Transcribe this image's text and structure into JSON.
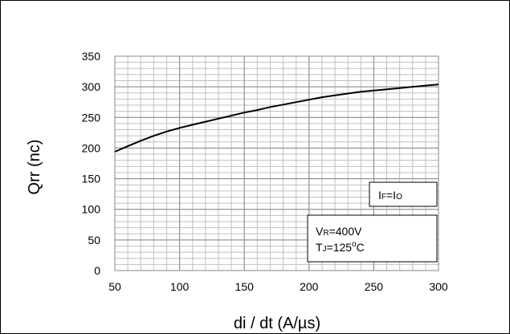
{
  "chart_data": {
    "type": "line",
    "title": "",
    "xlabel": "di / dt (A/µs)",
    "ylabel": "Qrr  (nc)",
    "xlim": [
      50,
      300
    ],
    "ylim": [
      0,
      350
    ],
    "x_ticks": [
      50,
      100,
      150,
      200,
      250,
      300
    ],
    "y_ticks": [
      0,
      50,
      100,
      150,
      200,
      250,
      300,
      350
    ],
    "x_tick_labels": [
      "50",
      "100",
      "150",
      "200",
      "250",
      "300"
    ],
    "y_tick_labels": [
      "0",
      "50",
      "100",
      "150",
      "200",
      "250",
      "300",
      "350"
    ],
    "grid": true,
    "series": [
      {
        "x": [
          50,
          60,
          70,
          80,
          90,
          100,
          110,
          120,
          130,
          140,
          150,
          160,
          170,
          180,
          190,
          200,
          210,
          220,
          230,
          240,
          250,
          260,
          270,
          280,
          290,
          300
        ],
        "y": [
          194,
          203,
          212,
          220,
          227,
          233,
          238,
          243,
          248,
          253,
          258,
          262,
          267,
          271,
          275,
          279,
          283,
          286,
          289,
          292,
          294,
          296,
          298,
          300,
          302,
          304
        ],
        "color": "#000000"
      }
    ],
    "annotations": [
      {
        "main": "I",
        "sub": "F",
        "rest": "=I",
        "sub2": "O"
      },
      {
        "line1_main": "V",
        "line1_sub": "R",
        "line1_rest": "=400V",
        "line2_main": "T",
        "line2_sub": "J",
        "line2_rest": "=125",
        "line2_sup": "o",
        "line2_end": "C"
      }
    ]
  }
}
